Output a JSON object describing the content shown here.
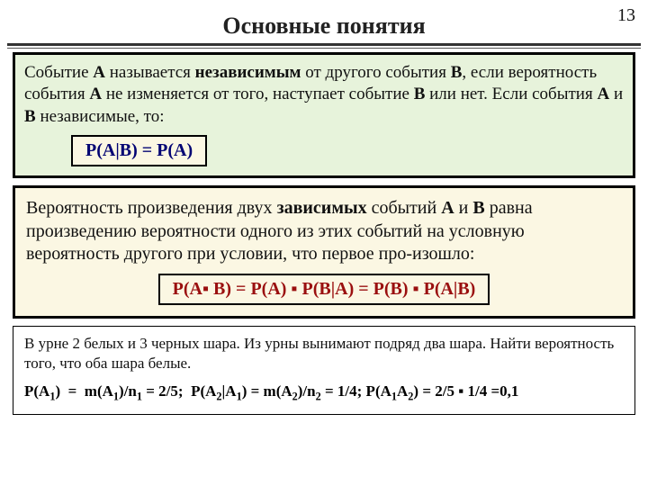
{
  "page_number": "13",
  "title": "Основные понятия",
  "colors": {
    "green_box_bg": "#e7f3db",
    "cream_box_bg": "#fbf7e3",
    "formula_navy": "#030373",
    "formula_red": "#9a0f0f",
    "rule_color": "#333333"
  },
  "box1": {
    "text_html": "Событие <b>A</b> называется <b>независимым</b> от другого события <b>B</b>, если вероятность события <b>A</b> не изменяется от того, наступает событие <b>B</b> или нет. Если события <b>A</b> и <b>B</b> независимые, то:",
    "formula": "P(A|B) = P(A)"
  },
  "box2": {
    "text_html": "Вероятность произведения двух <b>зависимых</b> событий <b>A</b> и <b>B</b> равна произведению  вероятности одного из этих событий на условную вероятность другого при условии, что первое про-изошло:",
    "formula": "P(A▪ B) = P(A) ▪ P(B|A) = P(B) ▪ P(A|B)"
  },
  "box3": {
    "problem": "В урне 2 белых и 3 черных шара. Из урны вынимают подряд два шара. Найти вероятность того, что оба шара белые.",
    "solution_html": "P(A<sub>1</sub>) &nbsp;= &nbsp;m(A<sub>1</sub>)/n<sub>1</sub> = 2/5; &nbsp;P(A<sub>2</sub>|A<sub>1</sub>) = m(A<sub>2</sub>)/n<sub>2</sub> = 1/4; P(A<sub>1</sub>A<sub>2</sub>) = 2/5 ▪ 1/4 =0,1"
  }
}
